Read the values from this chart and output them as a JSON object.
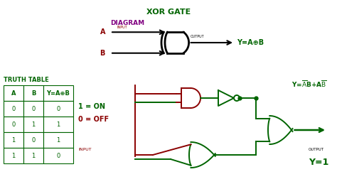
{
  "title": "XOR GATE",
  "diagram_label": "DIAGRAM",
  "truth_table_label": "TRUTH TABLE",
  "bg_color": "#ffffff",
  "legend_on": "1 = ON",
  "legend_off": "0 = OFF",
  "legend_input": "INPUT",
  "dark_green": "#006400",
  "dark_red": "#8B0000",
  "black": "#000000",
  "purple": "#800080",
  "output_label": "OUTPUT",
  "output_val": "Y=1"
}
